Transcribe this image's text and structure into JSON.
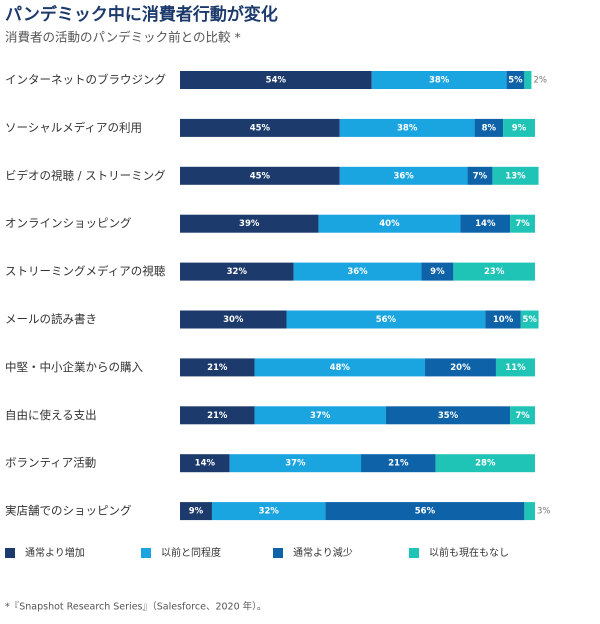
{
  "chart_data": {
    "type": "stacked-barh",
    "title": "パンデミック中に消費者行動が変化",
    "subtitle": "消費者の活動のパンデミック前との比較 *",
    "footnote": "*『Snapshot Research Series』（Salesforce、2020 年）。",
    "categories": [
      "インターネットのブラウジング",
      "ソーシャルメディアの利用",
      "ビデオの視聴 / ストリーミング",
      "オンラインショッピング",
      "ストリーミングメディアの視聴",
      "メールの読み書き",
      "中堅・中小企業からの購入",
      "自由に使える支出",
      "ボランティア活動",
      "実店舗でのショッピング"
    ],
    "xlim": [
      0,
      100
    ],
    "series": [
      {
        "name": "通常より増加",
        "color": "#1c3a6b",
        "values": [
          54,
          45,
          45,
          39,
          32,
          30,
          21,
          21,
          14,
          9
        ],
        "value_labels": [
          "54%",
          "45%",
          "45%",
          "39%",
          "32%",
          "30%",
          "21%",
          "21%",
          "14%",
          "9%"
        ]
      },
      {
        "name": "以前と同程度",
        "color": "#1aa5e0",
        "values": [
          38,
          38,
          36,
          40,
          36,
          56,
          48,
          37,
          37,
          32
        ],
        "value_labels": [
          "38%",
          "38%",
          "36%",
          "40%",
          "36%",
          "56%",
          "48%",
          "37%",
          "37%",
          "32%"
        ]
      },
      {
        "name": "通常より減少",
        "color": "#0d62a8",
        "values": [
          5,
          8,
          7,
          14,
          9,
          10,
          20,
          35,
          21,
          56
        ],
        "value_labels": [
          "5%",
          "8%",
          "7%",
          "14%",
          "9%",
          "10%",
          "20%",
          "35%",
          "21%",
          "56%"
        ]
      },
      {
        "name": "以前も現在もなし",
        "color": "#20c4b6",
        "values": [
          2,
          9,
          13,
          7,
          23,
          5,
          11,
          7,
          28,
          3
        ],
        "value_labels": [
          "2%",
          "9%",
          "13%",
          "7%",
          "23%",
          "5%",
          "11%",
          "7%",
          "28%",
          "3%"
        ]
      }
    ]
  }
}
